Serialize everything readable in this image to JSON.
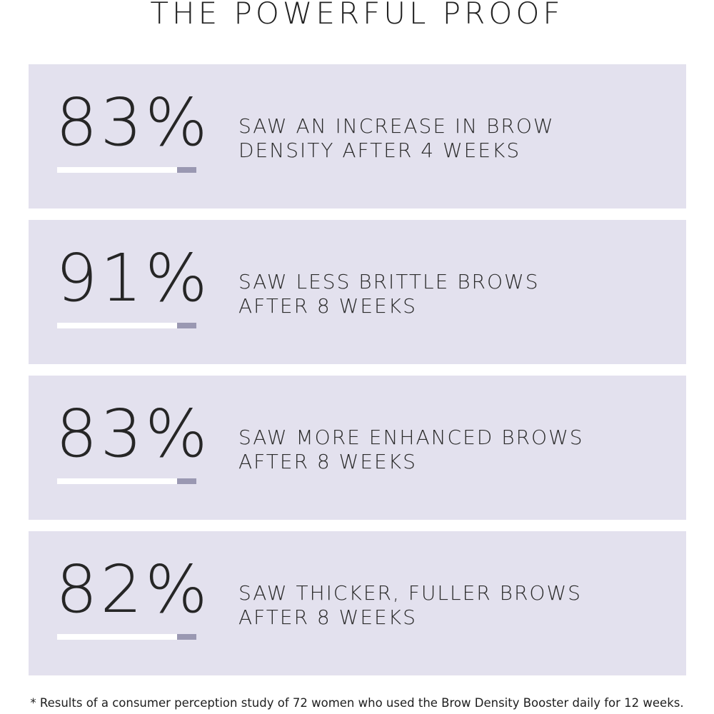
{
  "title": "THE POWERFUL PROOF",
  "colors": {
    "card_background": "#e3e1ee",
    "bar_track": "#ffffff",
    "bar_accent": "#9a98b2",
    "text": "#2b2b2b"
  },
  "stats": [
    {
      "value": "83%",
      "lines": [
        "SAW AN INCREASE IN BROW",
        "DENSITY AFTER 4 WEEKS"
      ]
    },
    {
      "value": "91%",
      "lines": [
        "SAW LESS BRITTLE BROWS",
        "AFTER 8 WEEKS"
      ]
    },
    {
      "value": "83%",
      "lines": [
        "SAW MORE ENHANCED BROWS",
        "AFTER 8 WEEKS"
      ]
    },
    {
      "value": "82%",
      "lines": [
        "SAW THICKER, FULLER BROWS",
        "AFTER 8 WEEKS"
      ]
    }
  ],
  "footnote": "* Results of a consumer perception study of 72 women who used the Brow Density Booster daily for 12 weeks."
}
